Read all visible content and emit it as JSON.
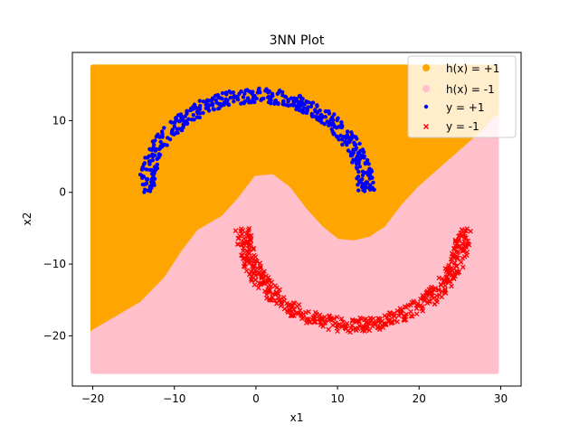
{
  "chart_data": {
    "type": "scatter",
    "title": "3NN Plot",
    "xlabel": "x1",
    "ylabel": "x2",
    "xlim": [
      -22.5,
      32.5
    ],
    "ylim": [
      -27,
      19.5
    ],
    "xticks": [
      -20,
      -10,
      0,
      10,
      20,
      30
    ],
    "xtick_labels": [
      "−20",
      "−10",
      "0",
      "10",
      "20",
      "30"
    ],
    "yticks": [
      -20,
      -10,
      0,
      10
    ],
    "ytick_labels": [
      "−20",
      "−10",
      "0",
      "10"
    ],
    "grid": false,
    "legend_position": "top-right",
    "region": {
      "x_range": [
        -20,
        29.5
      ],
      "y_range": [
        -25,
        17.5
      ],
      "boundary": [
        {
          "x": -20,
          "y": -19.5
        },
        {
          "x": -17,
          "y": -17.5
        },
        {
          "x": -14,
          "y": -15.5
        },
        {
          "x": -11,
          "y": -12
        },
        {
          "x": -9,
          "y": -8.5
        },
        {
          "x": -7,
          "y": -5.5
        },
        {
          "x": -4,
          "y": -3.5
        },
        {
          "x": -2,
          "y": -1
        },
        {
          "x": 0,
          "y": 2
        },
        {
          "x": 2,
          "y": 2.2
        },
        {
          "x": 4,
          "y": 0.5
        },
        {
          "x": 6,
          "y": -2.5
        },
        {
          "x": 8,
          "y": -5
        },
        {
          "x": 10,
          "y": -6.8
        },
        {
          "x": 12,
          "y": -7
        },
        {
          "x": 14,
          "y": -6.5
        },
        {
          "x": 16,
          "y": -5
        },
        {
          "x": 18,
          "y": -2
        },
        {
          "x": 20,
          "y": 0.5
        },
        {
          "x": 22,
          "y": 2.5
        },
        {
          "x": 24,
          "y": 4.5
        },
        {
          "x": 26,
          "y": 6.5
        },
        {
          "x": 28,
          "y": 8.5
        },
        {
          "x": 29.5,
          "y": 10.5
        }
      ]
    },
    "upper_moon": {
      "center": [
        0,
        0
      ],
      "r_min": 12.5,
      "r_max": 14.5,
      "theta_deg": [
        0,
        180
      ],
      "count": 500
    },
    "lower_moon": {
      "center": [
        12,
        -5
      ],
      "r_min": 12.5,
      "r_max": 14.5,
      "theta_deg": [
        180,
        360
      ],
      "count": 500
    },
    "series": [
      {
        "name": "h(x) = +1",
        "color": "#ffa500",
        "marker": "circle"
      },
      {
        "name": "h(x) = -1",
        "color": "#ffc0cb",
        "marker": "circle"
      },
      {
        "name": "y = +1",
        "color": "#0000ff",
        "marker": "dot"
      },
      {
        "name": "y = -1",
        "color": "#ff0000",
        "marker": "x"
      }
    ]
  }
}
